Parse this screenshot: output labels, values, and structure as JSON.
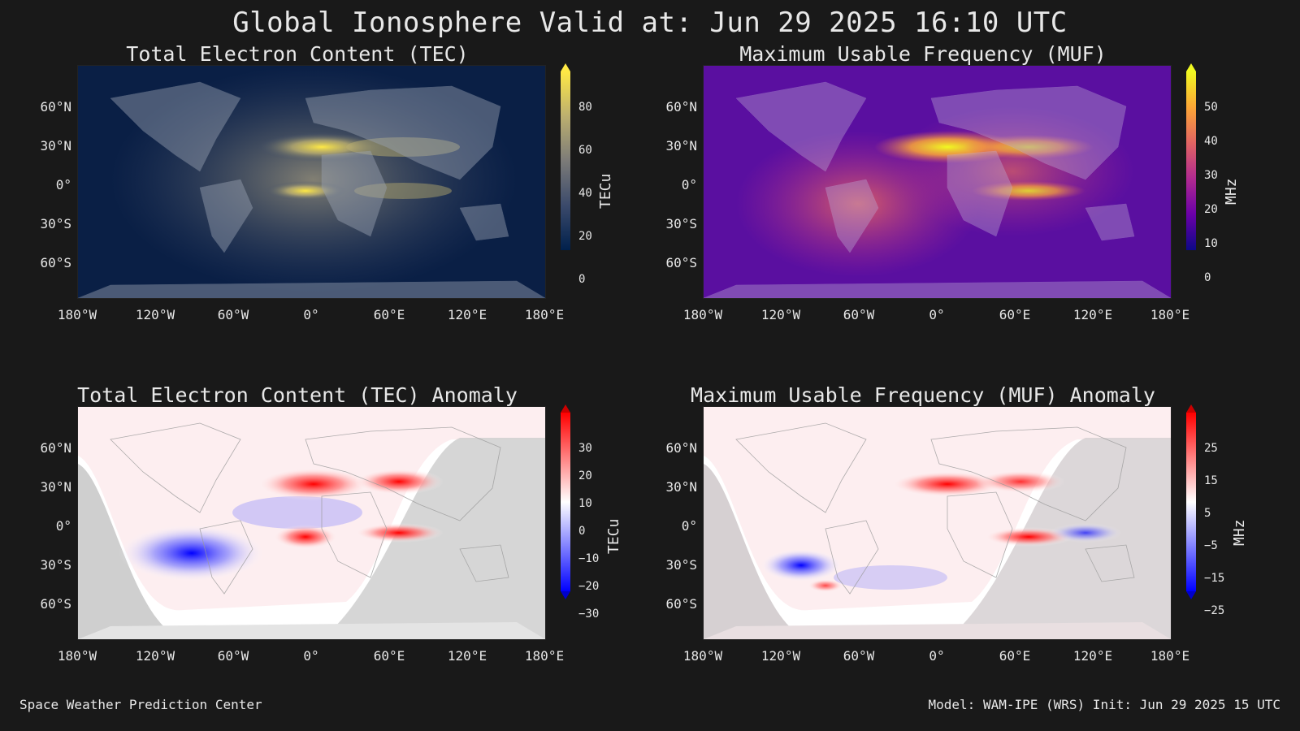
{
  "title": "Global Ionosphere Valid at: Jun 29 2025 16:10 UTC",
  "footer": {
    "left": "Space Weather Prediction Center",
    "right": "Model: WAM-IPE (WRS) Init: Jun 29 2025 15 UTC"
  },
  "lat_ticks": [
    "60°N",
    "30°N",
    "0°",
    "30°S",
    "60°S"
  ],
  "lon_ticks": [
    "180°W",
    "120°W",
    "60°W",
    "0°",
    "60°E",
    "120°E",
    "180°E"
  ],
  "panels": [
    {
      "title": "Total Electron Content (TEC)",
      "unit": "TECu",
      "colorbar_ticks": [
        "80",
        "60",
        "40",
        "20",
        "0"
      ],
      "colormap": "cividis",
      "colors": [
        "#00204c",
        "#3b4a6b",
        "#7c7b78",
        "#bcaf6f",
        "#ffe945"
      ],
      "background": "#10264d"
    },
    {
      "title": "Maximum Usable Frequency (MUF)",
      "unit": "MHz",
      "colorbar_ticks": [
        "50",
        "40",
        "30",
        "20",
        "10",
        "0"
      ],
      "colormap": "plasma",
      "colors": [
        "#0d0887",
        "#6a00a8",
        "#b12a90",
        "#e16462",
        "#fca636",
        "#f0f921"
      ],
      "background": "#6c1ca0"
    },
    {
      "title": "Total Electron Content (TEC) Anomaly",
      "unit": "TECu",
      "colorbar_ticks": [
        "30",
        "20",
        "10",
        "0",
        "−10",
        "−20",
        "−30"
      ],
      "colormap": "bwr",
      "colors": [
        "#0000ff",
        "#8080ff",
        "#ffffff",
        "#ff8080",
        "#ff0000"
      ],
      "background": "#f5f5f7"
    },
    {
      "title": "Maximum Usable Frequency (MUF) Anomaly",
      "unit": "MHz",
      "colorbar_ticks": [
        "25",
        "15",
        "5",
        "−5",
        "−15",
        "−25"
      ],
      "colormap": "bwr",
      "colors": [
        "#0000ff",
        "#8080ff",
        "#ffffff",
        "#ff8080",
        "#ff0000"
      ],
      "background": "#f8eef0"
    }
  ]
}
